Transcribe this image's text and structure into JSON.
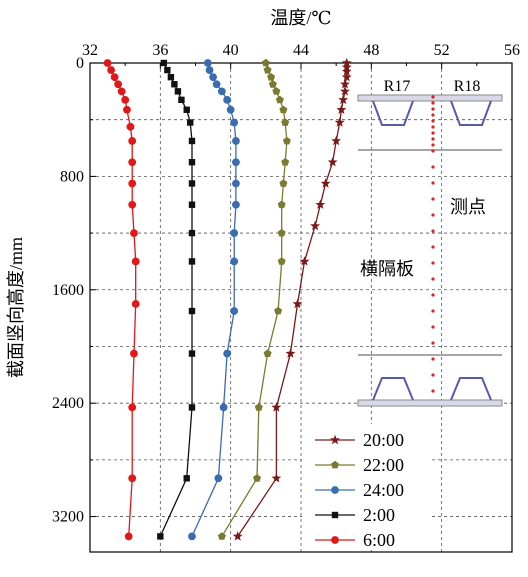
{
  "chart_data": {
    "type": "line",
    "xlabel": "温度/℃",
    "ylabel": "截面竖向高度/mm",
    "xlim": [
      32,
      56
    ],
    "ylim": [
      3450,
      0
    ],
    "y_inverted": true,
    "x_ticks": [
      32,
      36,
      40,
      44,
      48,
      52,
      56
    ],
    "y_ticks": [
      0,
      800,
      1600,
      2400,
      3200
    ],
    "grid": "dashed",
    "legend": "bottom-right",
    "series": [
      {
        "name": "20:00",
        "color": "#7a1a1a",
        "marker": "star",
        "points": [
          [
            46.6,
            0
          ],
          [
            46.6,
            30
          ],
          [
            46.6,
            60
          ],
          [
            46.6,
            100
          ],
          [
            46.5,
            150
          ],
          [
            46.5,
            200
          ],
          [
            46.4,
            260
          ],
          [
            46.3,
            330
          ],
          [
            46.2,
            420
          ],
          [
            46.0,
            550
          ],
          [
            45.8,
            700
          ],
          [
            45.4,
            850
          ],
          [
            45.1,
            1000
          ],
          [
            44.8,
            1150
          ],
          [
            44.2,
            1400
          ],
          [
            43.8,
            1700
          ],
          [
            43.4,
            2050
          ],
          [
            42.6,
            2430
          ],
          [
            42.6,
            2930
          ],
          [
            40.4,
            3340
          ]
        ]
      },
      {
        "name": "22:00",
        "color": "#7a7a30",
        "marker": "pentagon",
        "points": [
          [
            42.0,
            0
          ],
          [
            42.1,
            50
          ],
          [
            42.3,
            100
          ],
          [
            42.4,
            150
          ],
          [
            42.6,
            200
          ],
          [
            42.8,
            260
          ],
          [
            43.0,
            330
          ],
          [
            43.1,
            420
          ],
          [
            43.2,
            550
          ],
          [
            43.1,
            700
          ],
          [
            43.0,
            850
          ],
          [
            42.9,
            1000
          ],
          [
            42.9,
            1200
          ],
          [
            42.9,
            1400
          ],
          [
            42.7,
            1750
          ],
          [
            42.1,
            2050
          ],
          [
            41.6,
            2430
          ],
          [
            41.5,
            2930
          ],
          [
            39.5,
            3340
          ]
        ]
      },
      {
        "name": "24:00",
        "color": "#3a6cb0",
        "marker": "circle",
        "points": [
          [
            38.7,
            0
          ],
          [
            38.8,
            50
          ],
          [
            39.0,
            100
          ],
          [
            39.2,
            150
          ],
          [
            39.5,
            200
          ],
          [
            39.8,
            260
          ],
          [
            40.0,
            330
          ],
          [
            40.2,
            420
          ],
          [
            40.3,
            550
          ],
          [
            40.3,
            700
          ],
          [
            40.3,
            850
          ],
          [
            40.3,
            1000
          ],
          [
            40.2,
            1200
          ],
          [
            40.2,
            1400
          ],
          [
            40.2,
            1750
          ],
          [
            39.8,
            2050
          ],
          [
            39.6,
            2430
          ],
          [
            39.3,
            2930
          ],
          [
            37.8,
            3340
          ]
        ]
      },
      {
        "name": "2:00",
        "color": "#111111",
        "marker": "square",
        "points": [
          [
            36.2,
            0
          ],
          [
            36.4,
            50
          ],
          [
            36.6,
            100
          ],
          [
            36.8,
            150
          ],
          [
            37.0,
            200
          ],
          [
            37.2,
            260
          ],
          [
            37.5,
            330
          ],
          [
            37.7,
            420
          ],
          [
            37.8,
            550
          ],
          [
            37.8,
            700
          ],
          [
            37.8,
            850
          ],
          [
            37.8,
            1000
          ],
          [
            37.8,
            1200
          ],
          [
            37.8,
            1400
          ],
          [
            37.8,
            1750
          ],
          [
            37.8,
            2050
          ],
          [
            37.8,
            2430
          ],
          [
            37.5,
            2930
          ],
          [
            36.0,
            3340
          ]
        ]
      },
      {
        "name": "6:00",
        "color": "#e01818",
        "marker": "circle",
        "points": [
          [
            33.0,
            0
          ],
          [
            33.2,
            50
          ],
          [
            33.4,
            100
          ],
          [
            33.6,
            150
          ],
          [
            33.8,
            200
          ],
          [
            34.0,
            260
          ],
          [
            34.1,
            330
          ],
          [
            34.3,
            450
          ],
          [
            34.4,
            550
          ],
          [
            34.4,
            700
          ],
          [
            34.4,
            850
          ],
          [
            34.4,
            1000
          ],
          [
            34.5,
            1200
          ],
          [
            34.6,
            1400
          ],
          [
            34.6,
            1700
          ],
          [
            34.5,
            2050
          ],
          [
            34.4,
            2430
          ],
          [
            34.4,
            2930
          ],
          [
            34.2,
            3340
          ]
        ]
      }
    ],
    "inset": {
      "labels": {
        "left": "R17",
        "right": "R18",
        "point": "测点",
        "diaphragm": "横隔板"
      }
    }
  },
  "colors": {
    "grid": "#555555",
    "axis": "#000000",
    "inset_grey": "#8a8a8a",
    "inset_blue": "#5a5aa8"
  }
}
